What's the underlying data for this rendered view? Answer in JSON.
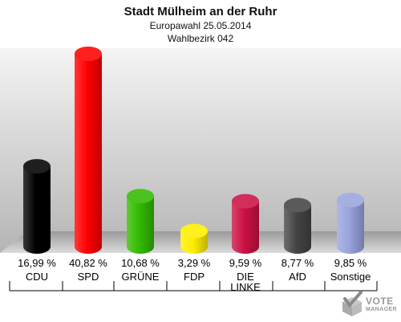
{
  "header": {
    "title": "Stadt Mülheim an der Ruhr",
    "subtitle": "Europawahl 25.05.2014",
    "district": "Wahlbezirk 042"
  },
  "logo": {
    "line1": "VOTE",
    "line2": "MANAGER"
  },
  "chart_data": {
    "type": "bar",
    "title": "Stadt Mülheim an der Ruhr",
    "subtitle": "Europawahl 25.05.2014 / Wahlbezirk 042",
    "xlabel": "",
    "ylabel": "",
    "ylim": [
      0,
      45
    ],
    "grid": false,
    "categories": [
      "CDU",
      "SPD",
      "GRÜNE",
      "FDP",
      "DIE LINKE",
      "AfD",
      "Sonstige"
    ],
    "category_lines": [
      [
        "CDU"
      ],
      [
        "SPD"
      ],
      [
        "GRÜNE"
      ],
      [
        "FDP"
      ],
      [
        "DIE",
        "LINKE"
      ],
      [
        "AfD"
      ],
      [
        "Sonstige"
      ]
    ],
    "values": [
      16.99,
      40.82,
      10.68,
      3.29,
      9.59,
      8.77,
      9.85
    ],
    "value_labels": [
      "16,99 %",
      "40,82 %",
      "10,68 %",
      "3,29 %",
      "9,59 %",
      "8,77 %",
      "9,85 %"
    ],
    "colors": [
      "#000000",
      "#ff0000",
      "#33bb00",
      "#ffee00",
      "#cc1144",
      "#444444",
      "#99a4dd"
    ]
  }
}
